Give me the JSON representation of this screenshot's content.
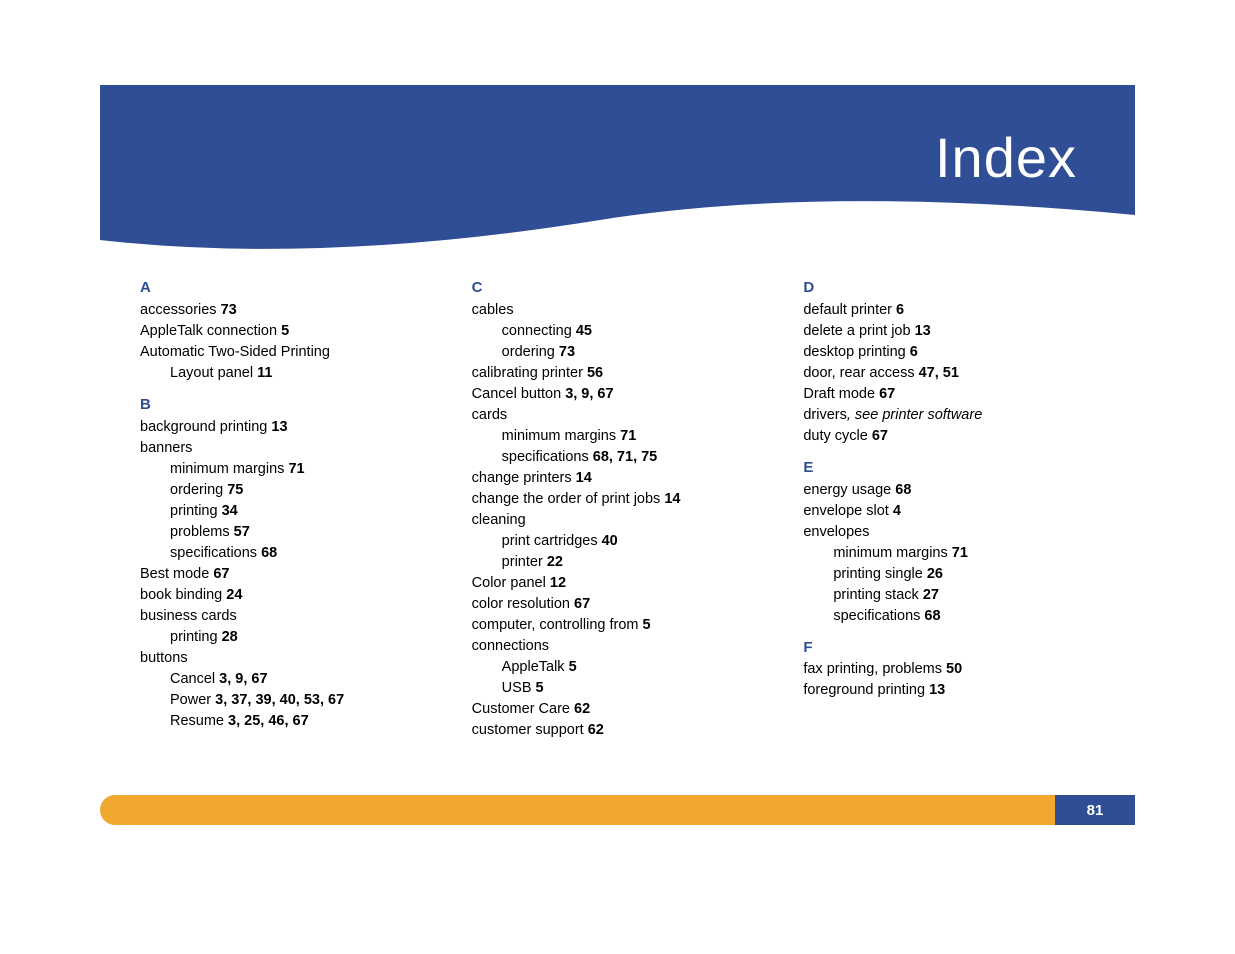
{
  "header": {
    "title": "Index",
    "band_color": "#2f4e95",
    "title_color": "#ffffff",
    "title_fontsize": 56
  },
  "footer": {
    "bar_color": "#f0a82e",
    "page_box_color": "#2f4e95",
    "page_number": "81"
  },
  "letter_color": "#2f4e95",
  "text_color": "#000000",
  "body_fontsize": 14.5,
  "columns": [
    {
      "groups": [
        {
          "letter": "A",
          "entries": [
            {
              "text": "accessories",
              "pages": "73"
            },
            {
              "text": "AppleTalk connection",
              "pages": "5"
            },
            {
              "text": "Automatic Two-Sided Printing"
            },
            {
              "text": "Layout panel",
              "pages": "11",
              "sub": true
            }
          ]
        },
        {
          "letter": "B",
          "entries": [
            {
              "text": "background printing",
              "pages": "13"
            },
            {
              "text": "banners"
            },
            {
              "text": "minimum margins",
              "pages": "71",
              "sub": true
            },
            {
              "text": "ordering",
              "pages": "75",
              "sub": true
            },
            {
              "text": "printing",
              "pages": "34",
              "sub": true
            },
            {
              "text": "problems",
              "pages": "57",
              "sub": true
            },
            {
              "text": "specifications",
              "pages": "68",
              "sub": true
            },
            {
              "text": "Best mode",
              "pages": "67"
            },
            {
              "text": "book binding",
              "pages": "24"
            },
            {
              "text": "business cards"
            },
            {
              "text": "printing",
              "pages": "28",
              "sub": true
            },
            {
              "text": "buttons"
            },
            {
              "text": "Cancel",
              "pages": "3, 9, 67",
              "sub": true
            },
            {
              "text": "Power",
              "pages": "3, 37, 39, 40, 53, 67",
              "sub": true
            },
            {
              "text": "Resume",
              "pages": "3, 25, 46, 67",
              "sub": true
            }
          ]
        }
      ]
    },
    {
      "groups": [
        {
          "letter": "C",
          "entries": [
            {
              "text": "cables"
            },
            {
              "text": "connecting",
              "pages": "45",
              "sub": true
            },
            {
              "text": "ordering",
              "pages": "73",
              "sub": true
            },
            {
              "text": "calibrating printer",
              "pages": "56"
            },
            {
              "text": "Cancel button",
              "pages": "3, 9, 67"
            },
            {
              "text": "cards"
            },
            {
              "text": "minimum margins",
              "pages": "71",
              "sub": true
            },
            {
              "text": "specifications",
              "pages": "68, 71, 75",
              "sub": true
            },
            {
              "text": "change printers",
              "pages": "14"
            },
            {
              "text": "change the order of print jobs",
              "pages": "14"
            },
            {
              "text": "cleaning"
            },
            {
              "text": "print cartridges",
              "pages": "40",
              "sub": true
            },
            {
              "text": "printer",
              "pages": "22",
              "sub": true
            },
            {
              "text": "Color panel",
              "pages": "12"
            },
            {
              "text": "color resolution",
              "pages": "67"
            },
            {
              "text": "computer, controlling from",
              "pages": "5"
            },
            {
              "text": "connections"
            },
            {
              "text": "AppleTalk",
              "pages": "5",
              "sub": true
            },
            {
              "text": "USB",
              "pages": "5",
              "sub": true
            },
            {
              "text": "Customer Care",
              "pages": "62"
            },
            {
              "text": "customer support",
              "pages": "62"
            }
          ]
        }
      ]
    },
    {
      "groups": [
        {
          "letter": "D",
          "entries": [
            {
              "text": "default printer",
              "pages": "6"
            },
            {
              "text": "delete a print job",
              "pages": "13"
            },
            {
              "text": "desktop printing",
              "pages": "6"
            },
            {
              "text": "door, rear access",
              "pages": "47, 51"
            },
            {
              "text": "Draft mode",
              "pages": "67"
            },
            {
              "text": "drivers",
              "after_italic": ", see printer software"
            },
            {
              "text": "duty cycle",
              "pages": "67"
            }
          ]
        },
        {
          "letter": "E",
          "entries": [
            {
              "text": "energy usage",
              "pages": "68"
            },
            {
              "text": "envelope slot",
              "pages": "4"
            },
            {
              "text": "envelopes"
            },
            {
              "text": "minimum margins",
              "pages": "71",
              "sub": true
            },
            {
              "text": "printing single",
              "pages": "26",
              "sub": true
            },
            {
              "text": "printing stack",
              "pages": "27",
              "sub": true
            },
            {
              "text": "specifications",
              "pages": "68",
              "sub": true
            }
          ]
        },
        {
          "letter": "F",
          "entries": [
            {
              "text": "fax printing, problems",
              "pages": "50"
            },
            {
              "text": "foreground printing",
              "pages": "13"
            }
          ]
        }
      ]
    }
  ]
}
